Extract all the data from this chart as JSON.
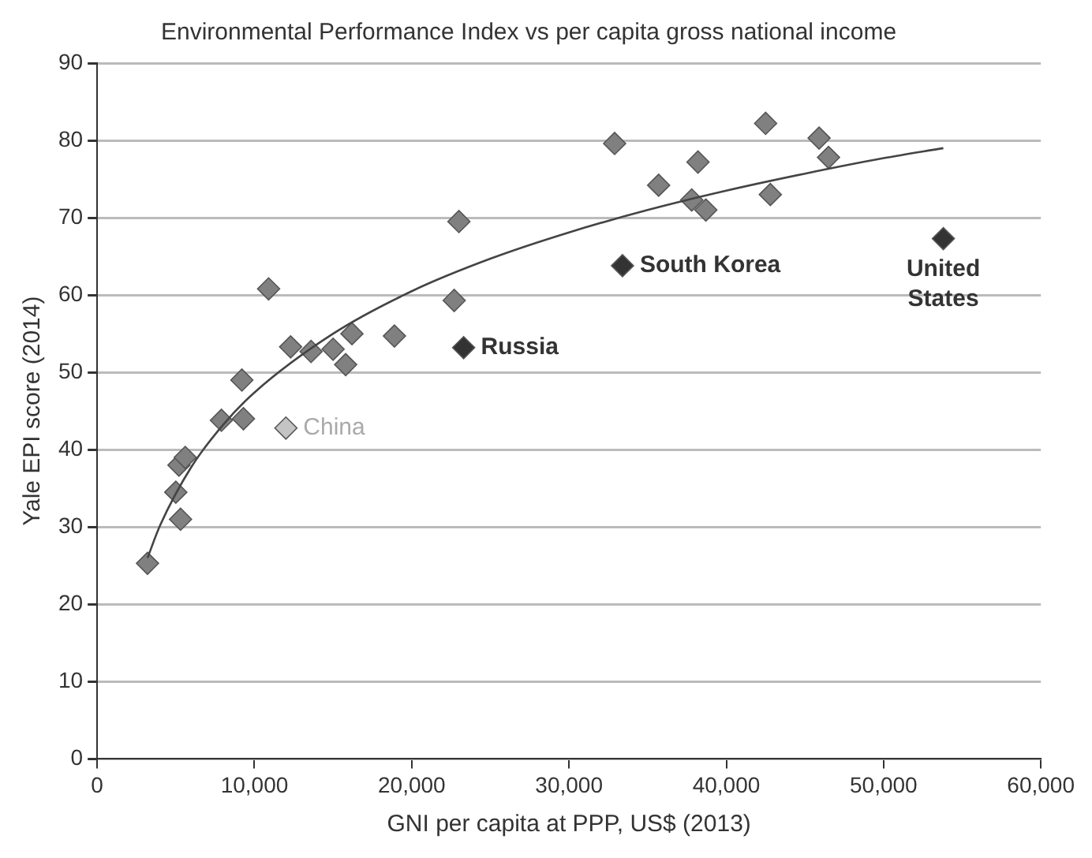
{
  "chart_data": {
    "type": "scatter",
    "title": "Environmental Performance Index vs per capita gross national income",
    "xlabel": "GNI per capita at PPP, US$ (2013)",
    "ylabel": "Yale EPI score (2014)",
    "xlim": [
      0,
      60000
    ],
    "xticks": [
      0,
      {
        "value": 10000,
        "label": "10,000"
      },
      {
        "value": 20000,
        "label": "20,000"
      },
      {
        "value": 30000,
        "label": "30,000"
      },
      {
        "value": 40000,
        "label": "40,000"
      },
      {
        "value": 50000,
        "label": "50,000"
      },
      {
        "value": 60000,
        "label": "60,000"
      }
    ],
    "ylim": [
      0,
      90
    ],
    "yticks": [
      0,
      10,
      20,
      30,
      40,
      50,
      60,
      70,
      80,
      90
    ],
    "grid": "y",
    "legend": false,
    "marker": "diamond",
    "series": [
      {
        "type": "line",
        "color": "#444444",
        "marker": "none",
        "x": [
          3200,
          4000,
          6000,
          8000,
          10000,
          15000,
          20000,
          25000,
          30000,
          35000,
          40000,
          45000,
          50000,
          53800
        ],
        "values": [
          26,
          30.2,
          37.8,
          43.2,
          47.4,
          55,
          60.5,
          64.7,
          68.1,
          71,
          73.5,
          75.7,
          77.7,
          79
        ]
      },
      {
        "color": "#808080",
        "x": [
          3200,
          5000,
          5200,
          5600,
          5300,
          7900,
          9200,
          9300,
          10900,
          12300,
          13600,
          15000,
          15800,
          16200,
          18900,
          22700,
          23000,
          32900,
          35700,
          37800,
          38200,
          38700,
          42500,
          42800,
          45900,
          46500
        ],
        "values": [
          25.3,
          34.5,
          38,
          39,
          31,
          43.8,
          49,
          44,
          60.8,
          53.3,
          52.7,
          53,
          51,
          55,
          54.7,
          59.3,
          69.5,
          79.6,
          74.2,
          72.3,
          77.2,
          71,
          82.2,
          73,
          80.3,
          77.8
        ]
      },
      {
        "name": "China",
        "color": "#c4c4c4",
        "x": [
          12000
        ],
        "values": [
          42.8
        ]
      },
      {
        "name": "Russia",
        "color": "#333333",
        "x": [
          23300
        ],
        "values": [
          53.2
        ]
      },
      {
        "name": "South Korea",
        "color": "#333333",
        "x": [
          33400
        ],
        "values": [
          63.8
        ]
      },
      {
        "name": "United States",
        "color": "#333333",
        "x": [
          53800
        ],
        "values": [
          67.3
        ]
      }
    ]
  }
}
